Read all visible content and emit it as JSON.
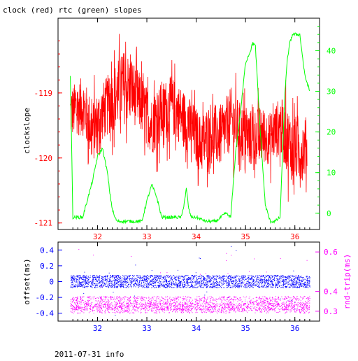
{
  "chart_data": [
    {
      "type": "line",
      "title": "clock (red) rtc (green) slopes",
      "xlabel": "",
      "ylabel": "clockslope",
      "y2label": "",
      "xlim": [
        31.2,
        36.5
      ],
      "ylim": [
        -121.1,
        -117.85
      ],
      "y2lim": [
        -4,
        48
      ],
      "x_ticks": [
        32,
        33,
        34,
        35,
        36
      ],
      "y_ticks": [
        -121,
        -120,
        -119
      ],
      "y2_ticks": [
        0,
        10,
        20,
        30,
        40
      ],
      "colors": {
        "clock": "#ff0000",
        "rtc": "#00ff00",
        "left_axis": "#ff0000",
        "right_axis": "#00ff00",
        "x_axis": "#ff0000"
      },
      "series": [
        {
          "name": "clock",
          "axis": "left",
          "x": [
            31.45,
            31.7,
            31.9,
            32.1,
            32.3,
            32.55,
            32.7,
            32.9,
            33.1,
            33.3,
            33.5,
            33.7,
            33.9,
            34.1,
            34.3,
            34.5,
            34.7,
            34.9,
            35.1,
            35.3,
            35.5,
            35.7,
            35.9,
            36.1,
            36.25
          ],
          "y": [
            -119.3,
            -119.2,
            -119.6,
            -119.3,
            -119.1,
            -118.9,
            -118.95,
            -119.2,
            -119.5,
            -119.3,
            -119.2,
            -119.35,
            -119.55,
            -119.8,
            -119.6,
            -119.7,
            -119.4,
            -119.6,
            -119.7,
            -119.65,
            -119.7,
            -119.5,
            -119.8,
            -119.9,
            -119.8
          ],
          "spread": [
            0.45,
            0.5,
            0.55,
            0.5,
            0.55,
            0.65,
            0.55,
            0.5,
            0.5,
            0.55,
            0.5,
            0.5,
            0.5,
            0.5,
            0.55,
            0.5,
            0.55,
            0.5,
            0.5,
            0.5,
            0.45,
            0.5,
            0.6,
            0.55,
            0.5
          ]
        },
        {
          "name": "rtc",
          "axis": "right",
          "x": [
            31.45,
            31.5,
            31.6,
            31.7,
            31.9,
            32.0,
            32.1,
            32.2,
            32.25,
            32.3,
            32.35,
            32.4,
            32.5,
            32.7,
            32.9,
            33.0,
            33.1,
            33.2,
            33.3,
            33.5,
            33.7,
            33.75,
            33.8,
            33.85,
            33.9,
            34.0,
            34.2,
            34.4,
            34.5,
            34.6,
            34.7,
            34.8,
            34.9,
            35.0,
            35.1,
            35.15,
            35.2,
            35.3,
            35.4,
            35.5,
            35.6,
            35.7,
            35.8,
            35.85,
            35.9,
            35.95,
            36.0,
            36.1,
            36.2,
            36.3
          ],
          "y": [
            34,
            -1,
            -1,
            -1,
            8,
            14,
            16,
            10,
            5,
            1,
            -1,
            -2,
            -2,
            -2,
            -2,
            3,
            7,
            4,
            -1,
            -1,
            -1,
            2,
            6,
            1,
            -1,
            -1,
            -2,
            -2,
            -1,
            0,
            -1,
            15,
            25,
            37,
            40,
            42,
            41,
            20,
            2,
            -2,
            -2,
            -1,
            30,
            38,
            42,
            44,
            44,
            44,
            34,
            30
          ]
        }
      ]
    },
    {
      "type": "scatter",
      "title": "",
      "xlabel": "2011-07-31 info",
      "ylabel": "offset(ms)",
      "y2label": "rnd-trip(ms)",
      "xlim": [
        31.2,
        36.5
      ],
      "ylim": [
        -0.5,
        0.5
      ],
      "y2lim": [
        0.25,
        0.65
      ],
      "x_ticks": [
        32,
        33,
        34,
        35,
        36
      ],
      "y_ticks": [
        -0.4,
        -0.2,
        0,
        0.2,
        0.4
      ],
      "y2_ticks": [
        0.3,
        0.4,
        0.6
      ],
      "colors": {
        "offset": "#0000ff",
        "round_trip": "#ff00ff",
        "left_axis": "#0000ff",
        "right_axis": "#ff00ff",
        "x_axis": "#0000ff"
      },
      "series": [
        {
          "name": "offset",
          "axis": "left",
          "x_range": [
            31.45,
            36.3
          ],
          "center": 0.0,
          "spread": 0.08
        },
        {
          "name": "round_trip",
          "axis": "right",
          "x_range": [
            31.45,
            36.3
          ],
          "center": 0.34,
          "spread": 0.035
        }
      ]
    }
  ]
}
